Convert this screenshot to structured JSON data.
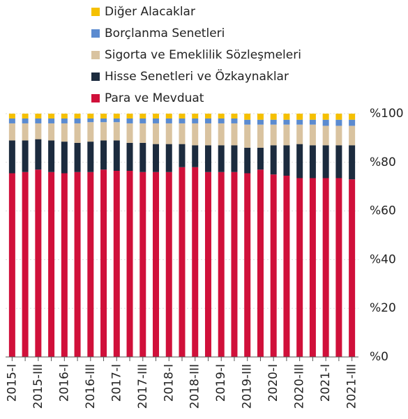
{
  "chart_data": {
    "type": "stacked_bar",
    "categories": [
      "2015-I",
      null,
      "2015-III",
      null,
      "2016-I",
      null,
      "2016-III",
      null,
      "2017-I",
      null,
      "2017-III",
      null,
      "2018-I",
      null,
      "2018-III",
      null,
      "2019-I",
      null,
      "2019-III",
      null,
      "2020-I",
      null,
      "2020-III",
      null,
      "2021-I",
      null,
      "2021-III"
    ],
    "series": [
      {
        "name": "Para ve Mevduat",
        "color": "#d0103a",
        "values": [
          75.5,
          76,
          77,
          76,
          75.5,
          76,
          76,
          77,
          76.5,
          76.5,
          76,
          76,
          76,
          78,
          78,
          76,
          76,
          76,
          75.5,
          77,
          75,
          74.5,
          73.5,
          73.5,
          73.5,
          73.5,
          73
        ]
      },
      {
        "name": "Hisse Senetleri ve Özkaynaklar",
        "color": "#1c2b3e",
        "values": [
          13.5,
          13,
          12.5,
          13,
          13,
          12,
          12.5,
          12,
          12.5,
          11.5,
          12,
          11.5,
          11.5,
          9.5,
          9,
          11,
          11,
          11,
          10.5,
          9,
          12,
          12.5,
          14,
          13.5,
          13.5,
          13.5,
          14
        ]
      },
      {
        "name": "Sigorta ve Emeklilik Sözleşmeleri",
        "color": "#d9c3a0",
        "values": [
          7,
          7,
          6.5,
          7,
          7.5,
          8,
          8,
          7.5,
          7.5,
          8,
          8,
          8.5,
          8.5,
          8.5,
          9,
          9,
          9,
          9,
          9.5,
          9.5,
          8.5,
          8.5,
          8,
          8.5,
          8,
          8,
          8
        ]
      },
      {
        "name": "Borçlanma Senetleri",
        "color": "#5b8bd0",
        "values": [
          2,
          2,
          2,
          2,
          2,
          2,
          1.5,
          1.5,
          1.5,
          2,
          2,
          2,
          2,
          2,
          2,
          2,
          2,
          2,
          2,
          2,
          2,
          2,
          2,
          2,
          2.5,
          2.5,
          2.5
        ]
      },
      {
        "name": "Diğer Alacaklar",
        "color": "#f5c000",
        "values": [
          2,
          2,
          2,
          2,
          2,
          2,
          2,
          2,
          2,
          2,
          2,
          2,
          2,
          2,
          2,
          2,
          2,
          2,
          2.5,
          2.5,
          2.5,
          2.5,
          2.5,
          2.5,
          2.5,
          2.5,
          2.5
        ]
      }
    ],
    "ylim": [
      0,
      100
    ],
    "yticks": [
      {
        "value": 0,
        "label": "%0"
      },
      {
        "value": 20,
        "label": "%20"
      },
      {
        "value": 40,
        "label": "%40"
      },
      {
        "value": 60,
        "label": "%60"
      },
      {
        "value": 80,
        "label": "%80"
      },
      {
        "value": 100,
        "label": "%100"
      }
    ],
    "grid": true
  }
}
